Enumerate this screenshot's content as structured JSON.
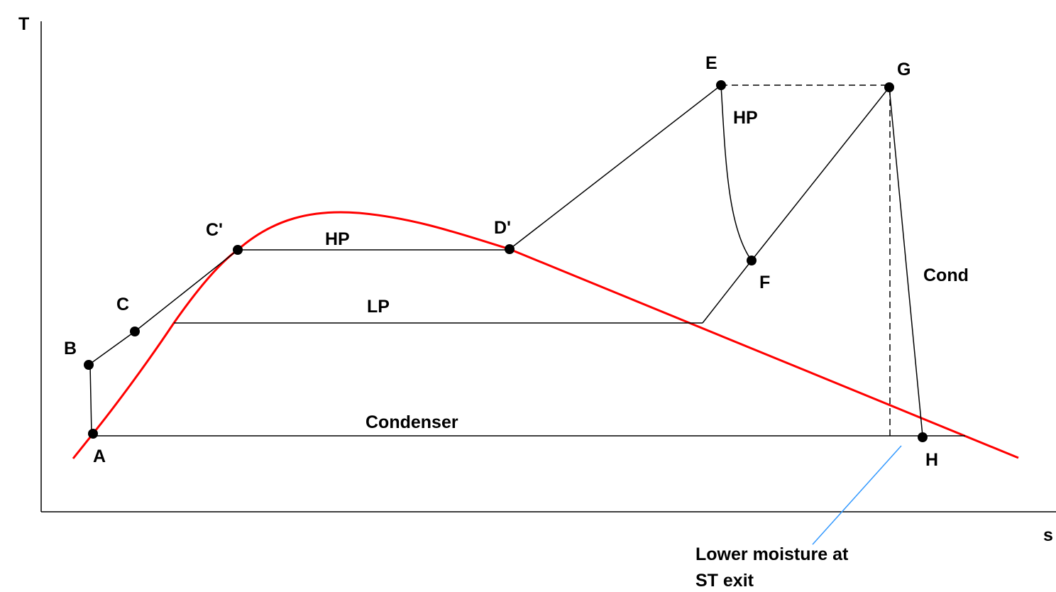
{
  "axes": {
    "y_label": "T",
    "x_label": "s"
  },
  "points": [
    {
      "label": "A"
    },
    {
      "label": "B"
    },
    {
      "label": "C"
    },
    {
      "label": "C'"
    },
    {
      "label": "D'"
    },
    {
      "label": "E"
    },
    {
      "label": "F"
    },
    {
      "label": "G"
    },
    {
      "label": "H"
    }
  ],
  "processes": [
    {
      "label": "HP"
    },
    {
      "label": "LP"
    },
    {
      "label": "HP"
    },
    {
      "label": "Condenser"
    },
    {
      "label": "Cond"
    }
  ],
  "annotation": {
    "lines": [
      "Lower moisture at",
      "ST exit"
    ]
  }
}
